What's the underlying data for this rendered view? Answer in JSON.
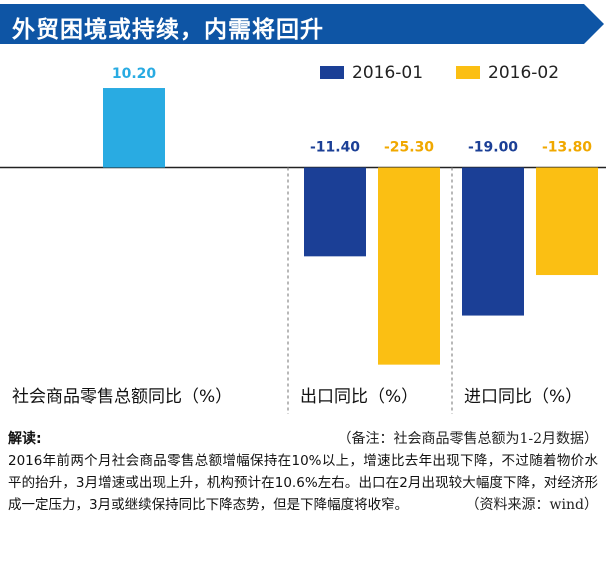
{
  "header": {
    "title": "外贸困境或持续，内需将回升",
    "background_color": "#0e55a5"
  },
  "chart_data": {
    "type": "bar",
    "colors": {
      "2016-01": "#1b3f96",
      "2016-02": "#fbbf13",
      "retail": "#29abe2"
    },
    "legend": [
      {
        "name": "2016-01",
        "color": "#1b3f96"
      },
      {
        "name": "2016-02",
        "color": "#fbbf13"
      }
    ],
    "legend_position": "top-right",
    "panels": [
      {
        "category": "社会商品零售总额同比（%）",
        "bars": [
          {
            "series": "",
            "value": 10.2,
            "label": "10.20"
          }
        ]
      },
      {
        "category": "出口同比（%）",
        "bars": [
          {
            "series": "2016-01",
            "value": -11.4,
            "label": "-11.40"
          },
          {
            "series": "2016-02",
            "value": -25.3,
            "label": "-25.30"
          }
        ]
      },
      {
        "category": "进口同比（%）",
        "bars": [
          {
            "series": "2016-01",
            "value": -19.0,
            "label": "-19.00"
          },
          {
            "series": "2016-02",
            "value": -13.8,
            "label": "-13.80"
          }
        ]
      }
    ],
    "ylim": [
      -26.5,
      12
    ]
  },
  "notes": {
    "title": "解读:",
    "remark": "（备注：社会商品零售总额为1-2月数据）",
    "body": "2016年前两个月社会商品零售总额增幅保持在10%以上，增速比去年出现下降，不过随着物价水平的抬升，3月增速或出现上升，机构预计在10.6%左右。出口在2月出现较大幅度下降，对经济形成一定压力，3月或继续保持同比下降态势，但是下降幅度将收窄。",
    "source": "（资料来源：wind）"
  }
}
